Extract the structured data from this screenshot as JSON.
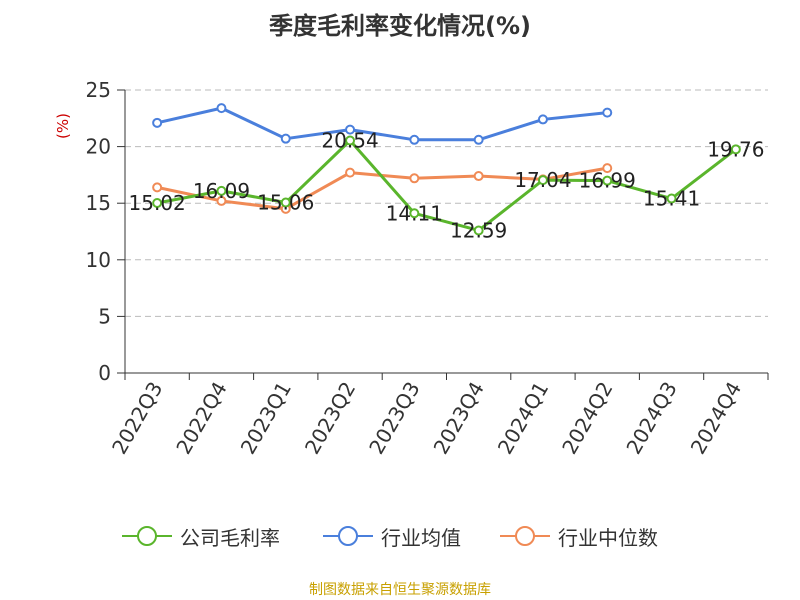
{
  "chart_data": {
    "type": "line",
    "title": "季度毛利率变化情况(%)",
    "ylabel": "(%)",
    "categories": [
      "2022Q3",
      "2022Q4",
      "2023Q1",
      "2023Q2",
      "2023Q3",
      "2023Q4",
      "2024Q1",
      "2024Q2",
      "2024Q3",
      "2024Q4"
    ],
    "ylim": [
      0,
      25
    ],
    "yticks": [
      0,
      5,
      10,
      15,
      20,
      25
    ],
    "grid": true,
    "legend_position": "bottom",
    "series": [
      {
        "name": "公司毛利率",
        "color": "#5ab52c",
        "show_labels": true,
        "values": [
          15.02,
          16.09,
          15.06,
          20.54,
          14.11,
          12.59,
          17.04,
          16.99,
          15.41,
          19.76
        ]
      },
      {
        "name": "行业均值",
        "color": "#4a7fdc",
        "show_labels": false,
        "values": [
          22.1,
          23.4,
          20.7,
          21.5,
          20.6,
          20.6,
          22.4,
          23.0,
          null,
          null
        ]
      },
      {
        "name": "行业中位数",
        "color": "#f08a55",
        "show_labels": false,
        "values": [
          16.4,
          15.2,
          14.5,
          17.7,
          17.2,
          17.4,
          17.1,
          18.1,
          null,
          null
        ]
      }
    ]
  },
  "footer": "制图数据来自恒生聚源数据库"
}
